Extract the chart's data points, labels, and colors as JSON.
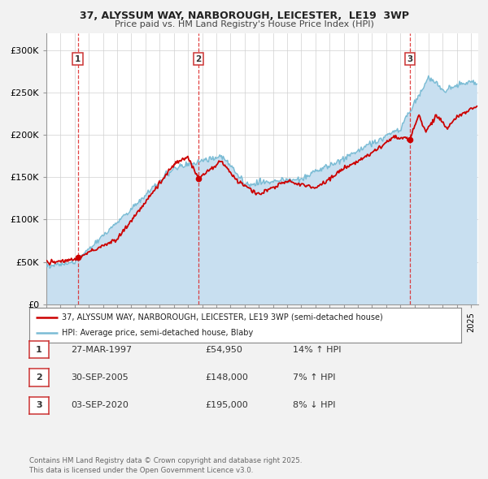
{
  "title_line1": "37, ALYSSUM WAY, NARBOROUGH, LEICESTER,  LE19  3WP",
  "title_line2": "Price paid vs. HM Land Registry's House Price Index (HPI)",
  "legend_label1": "37, ALYSSUM WAY, NARBOROUGH, LEICESTER, LE19 3WP (semi-detached house)",
  "legend_label2": "HPI: Average price, semi-detached house, Blaby",
  "line1_color": "#cc0000",
  "line2_color": "#7bbcd5",
  "fill2_color": "#c8dff0",
  "background_color": "#f2f2f2",
  "plot_bg_color": "#ffffff",
  "legend_bg": "#ffffff",
  "ylim": [
    0,
    320000
  ],
  "yticks": [
    0,
    50000,
    100000,
    150000,
    200000,
    250000,
    300000
  ],
  "ytick_labels": [
    "£0",
    "£50K",
    "£100K",
    "£150K",
    "£200K",
    "£250K",
    "£300K"
  ],
  "sale_dates_num": [
    1997.22,
    2005.75,
    2020.67
  ],
  "sale_prices": [
    54950,
    148000,
    195000
  ],
  "sale_labels": [
    "1",
    "2",
    "3"
  ],
  "vline_dates": [
    1997.22,
    2005.75,
    2020.67
  ],
  "table_rows": [
    [
      "1",
      "27-MAR-1997",
      "£54,950",
      "14% ↑ HPI"
    ],
    [
      "2",
      "30-SEP-2005",
      "£148,000",
      "7% ↑ HPI"
    ],
    [
      "3",
      "03-SEP-2020",
      "£195,000",
      "8% ↓ HPI"
    ]
  ],
  "footer_text": "Contains HM Land Registry data © Crown copyright and database right 2025.\nThis data is licensed under the Open Government Licence v3.0.",
  "xmin": 1995.0,
  "xmax": 2025.5
}
